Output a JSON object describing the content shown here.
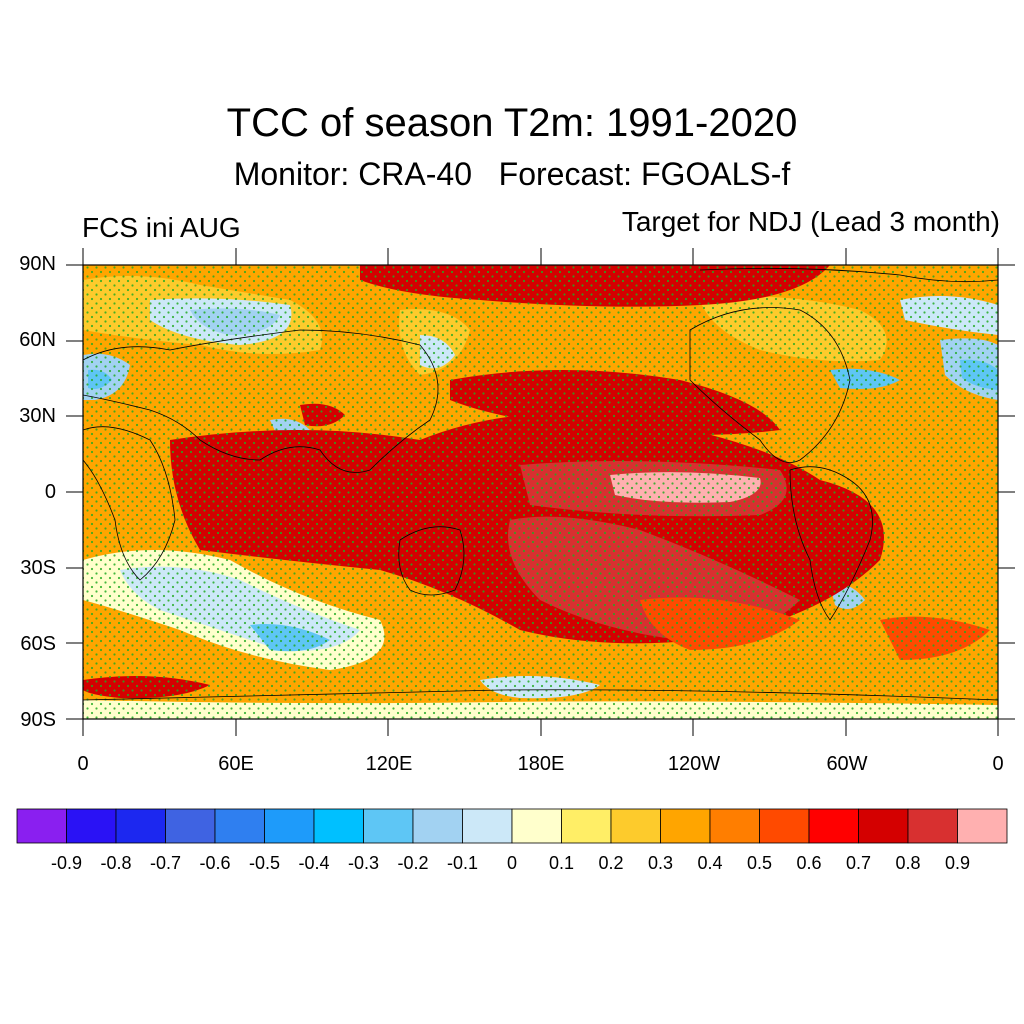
{
  "title": "TCC of season T2m: 1991-2020",
  "subtitle": "Monitor: CRA-40   Forecast: FGOALS-f",
  "left_label": "FCS ini AUG",
  "right_label": "Target for NDJ (Lead 3 month)",
  "lat_ticks": [
    "90N",
    "60N",
    "30N",
    "0",
    "30S",
    "60S",
    "90S"
  ],
  "lon_ticks": [
    "0",
    "60E",
    "120E",
    "180E",
    "120W",
    "60W",
    "0"
  ],
  "colorbar": {
    "labels": [
      "-0.9",
      "-0.8",
      "-0.7",
      "-0.6",
      "-0.5",
      "-0.4",
      "-0.3",
      "-0.2",
      "-0.1",
      "0",
      "0.1",
      "0.2",
      "0.3",
      "0.4",
      "0.5",
      "0.6",
      "0.7",
      "0.8",
      "0.9"
    ],
    "colors": [
      "#8a1ff0",
      "#2a12f5",
      "#1c28f0",
      "#3f63e2",
      "#2f7ff0",
      "#1e9bfa",
      "#00c0ff",
      "#5ec6f5",
      "#a2d2f2",
      "#cce8f8",
      "#ffffcc",
      "#ffee66",
      "#fdcb2c",
      "#ffa500",
      "#ff7e00",
      "#ff4a00",
      "#ff0000",
      "#d40000",
      "#d83030",
      "#ffb0b0"
    ]
  },
  "map": {
    "colors": {
      "background": "#ffa500",
      "strong_positive": "#d40000",
      "very_strong": "#d83030",
      "peak": "#ffb0b0",
      "weak": "#fdcb2c",
      "near_zero": "#ffffcc",
      "negative": "#a2d2f2",
      "more_negative": "#5ec6f5",
      "stipple": "#22aa22",
      "coast": "#000000"
    }
  }
}
